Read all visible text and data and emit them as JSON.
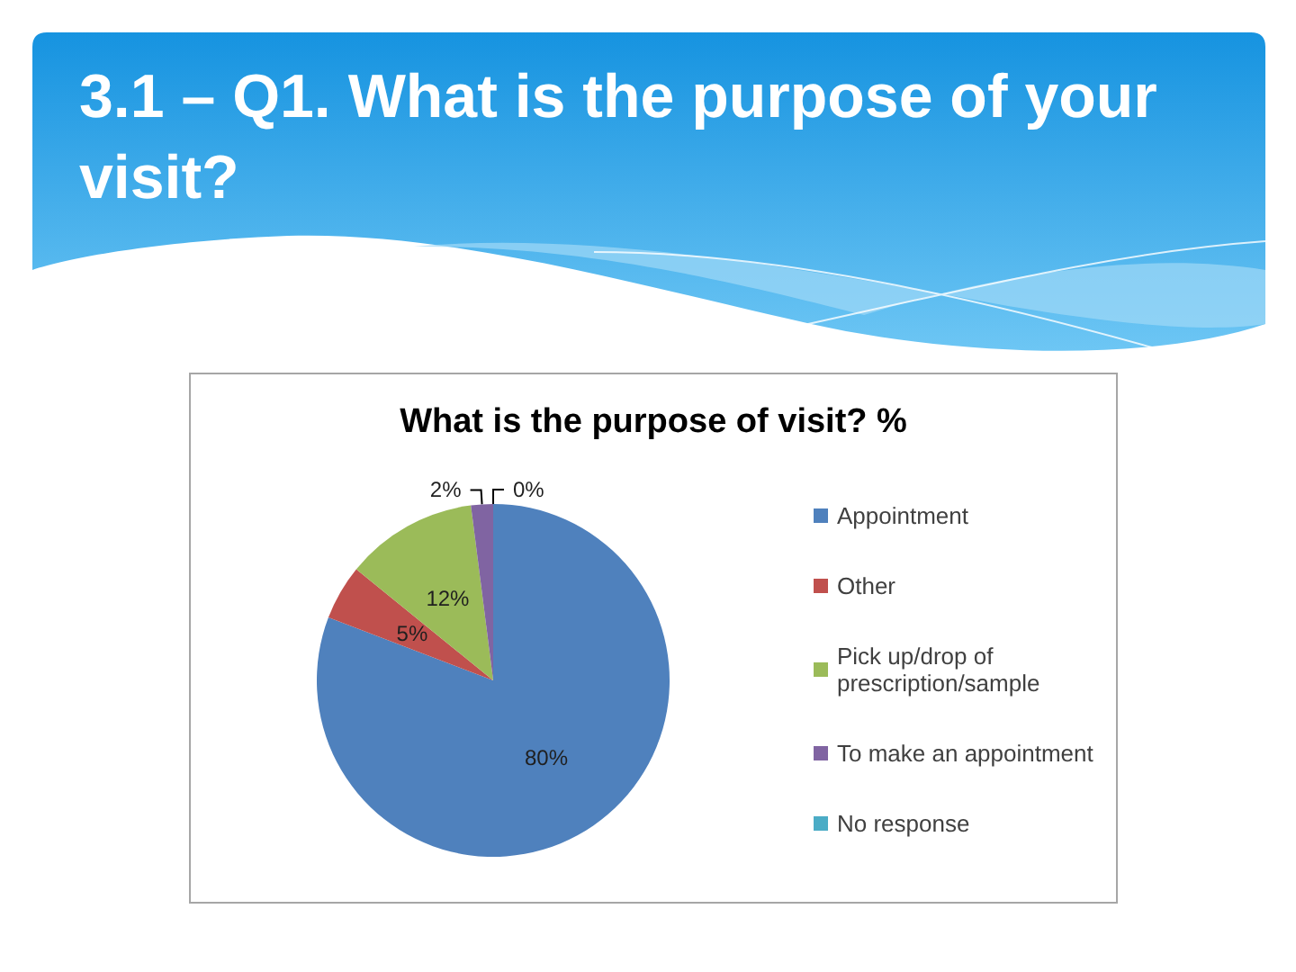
{
  "chart_data": {
    "type": "pie",
    "title": "3.1 – Q1. What is the purpose of your visit?",
    "subtitle": "What is the purpose of visit? %",
    "categories": [
      "Appointment",
      "Other",
      "Pick up/drop of prescription/sample",
      "To make an appointment",
      "No response"
    ],
    "values": [
      80,
      5,
      12,
      2,
      0
    ],
    "colors": [
      "#4f81bd",
      "#c0504d",
      "#9bbb59",
      "#8064a2",
      "#4bacc6"
    ],
    "value_labels": [
      "80%",
      "5%",
      "12%",
      "2%",
      "0%"
    ],
    "legend": "right"
  }
}
